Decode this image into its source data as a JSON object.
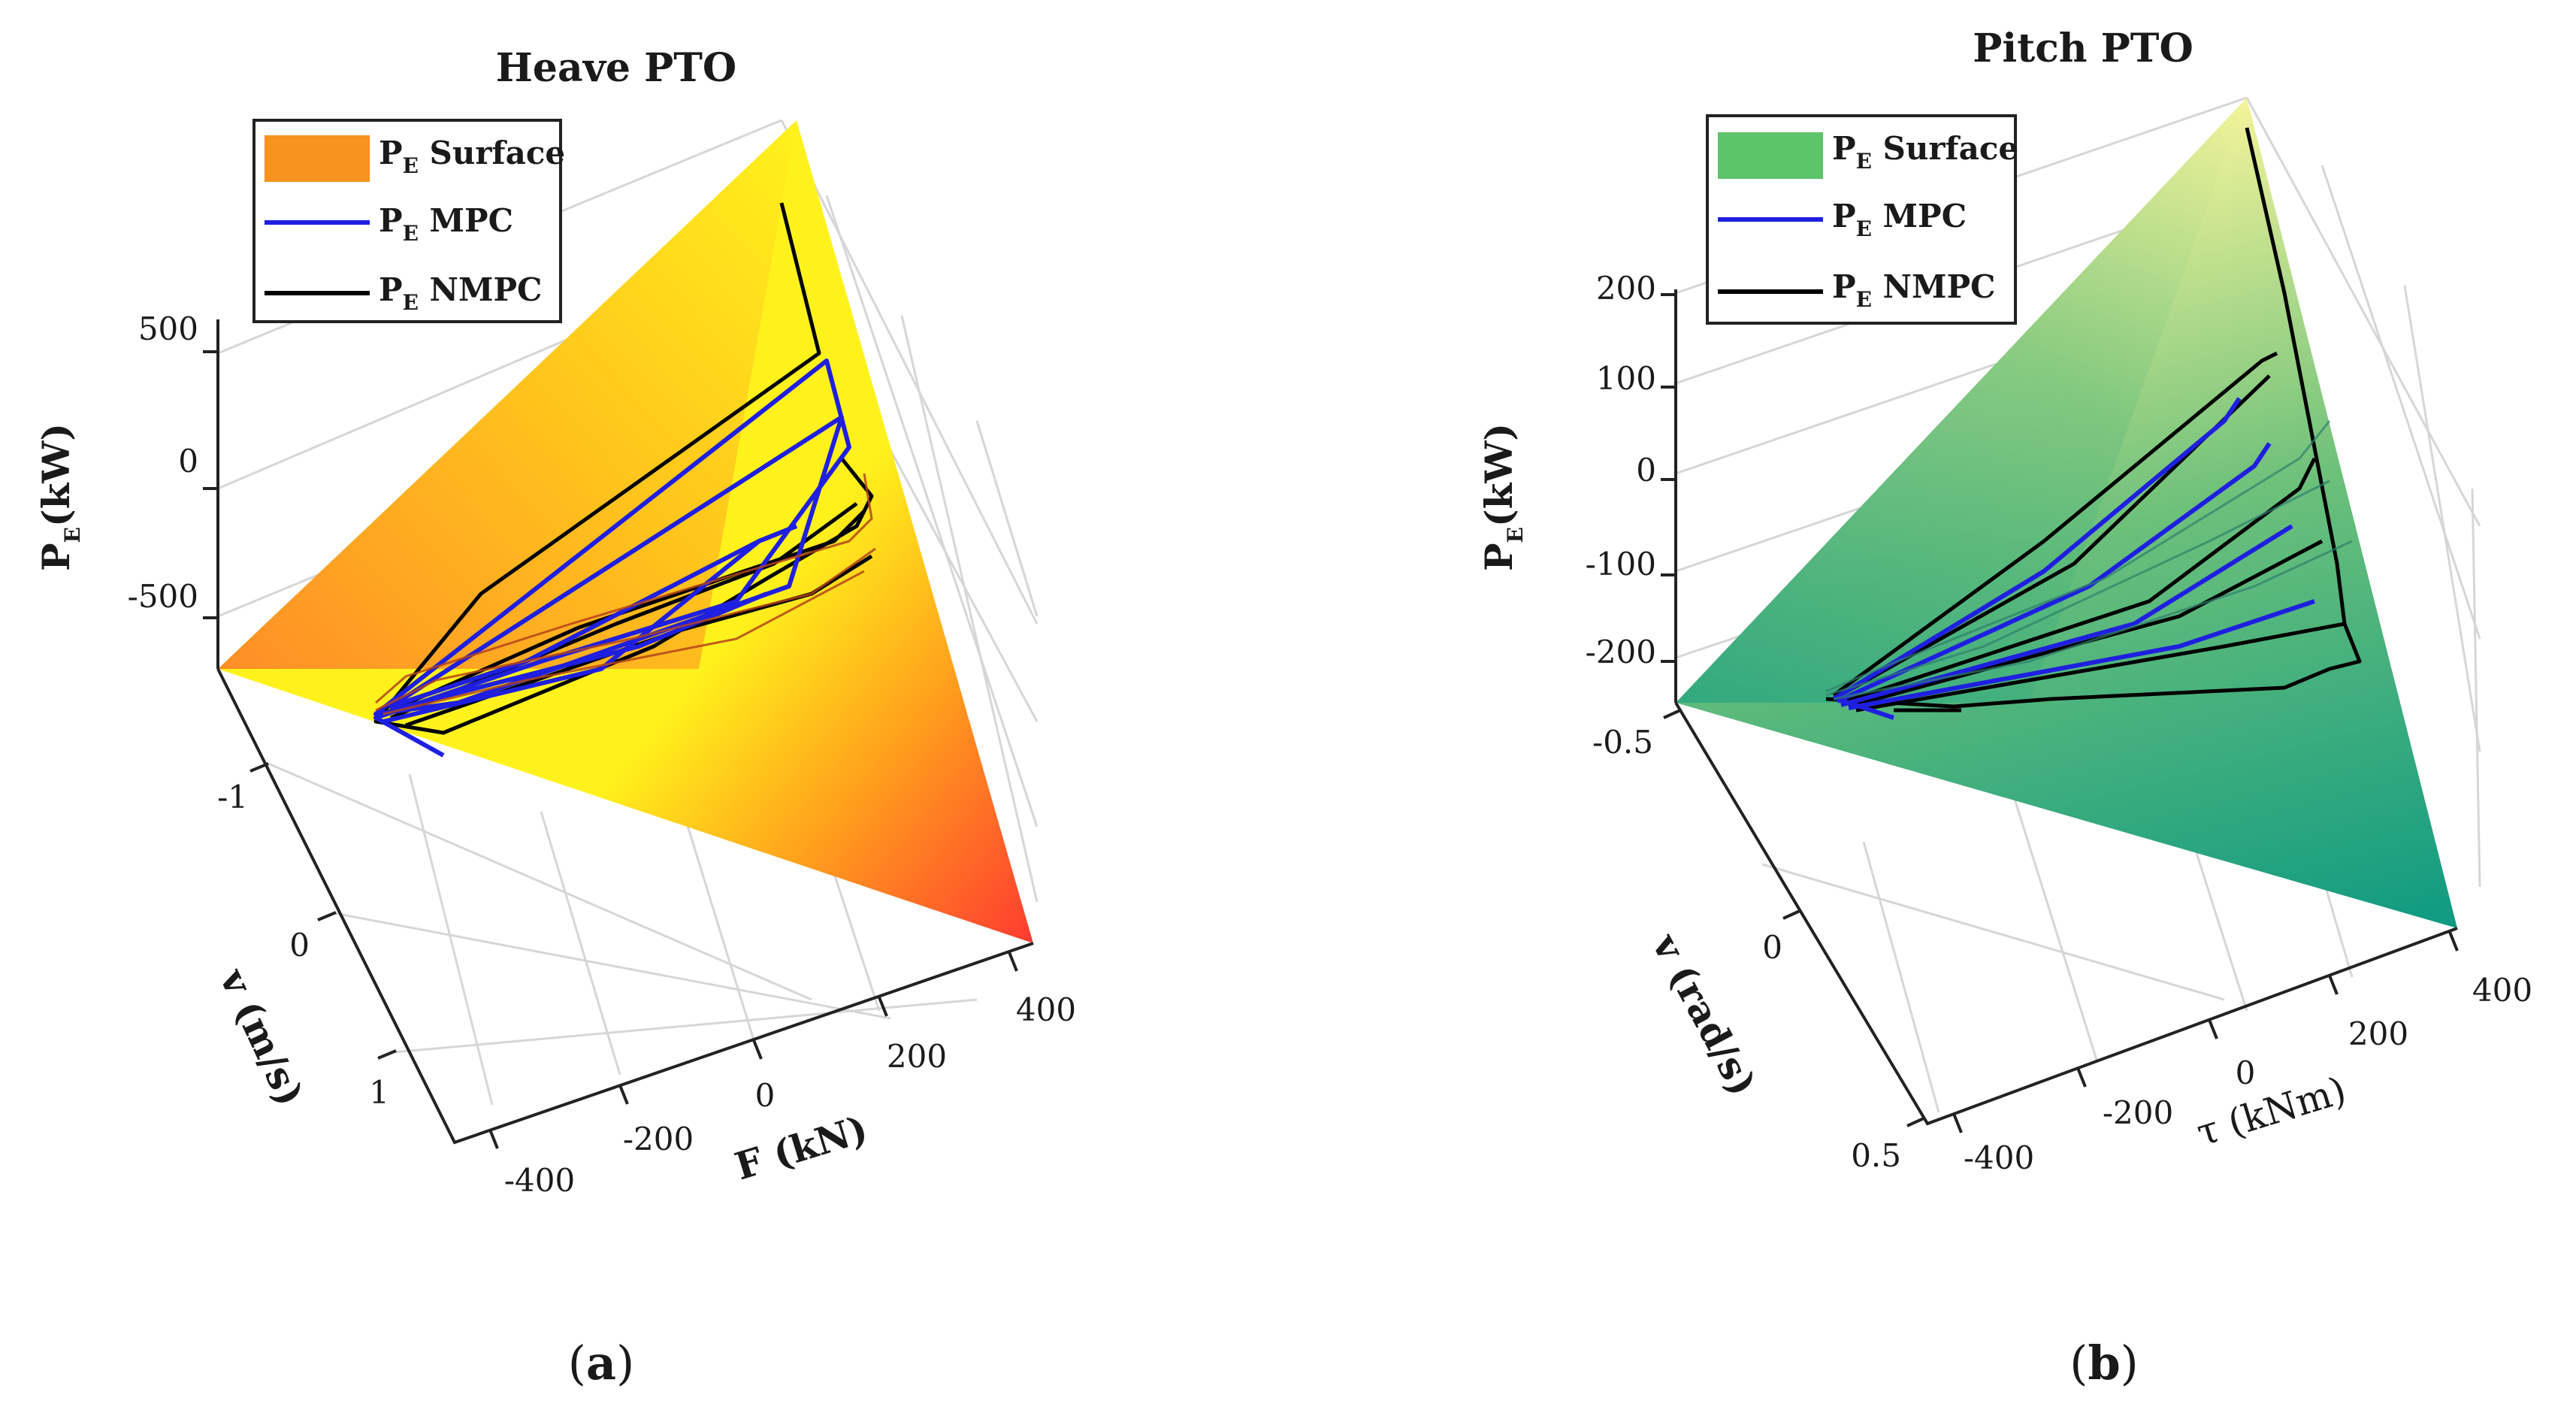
{
  "chart_data": [
    {
      "type": "surface3d",
      "panel_caption": "a",
      "title": "Heave PTO",
      "zlabel": {
        "main": "P",
        "sub": "E",
        "rest": "(kW)"
      },
      "xlabel": "F (kN)",
      "ylabel": "v (m/s)",
      "z_ticks": [
        "500",
        "0",
        "-500"
      ],
      "y_ticks": [
        "-1",
        "0",
        "1"
      ],
      "x_ticks": [
        "-400",
        "-200",
        "0",
        "200",
        "400"
      ],
      "legend": [
        {
          "label_main": "P",
          "label_sub": "E",
          "label_rest": " Surface",
          "kind": "patch",
          "color": "#f7931e"
        },
        {
          "label_main": "P",
          "label_sub": "E",
          "label_rest": " MPC",
          "kind": "line",
          "color": "#1f1fe0"
        },
        {
          "label_main": "P",
          "label_sub": "E",
          "label_rest": " NMPC",
          "kind": "line",
          "color": "#000000"
        }
      ],
      "surface_colors": [
        "#ff3b30",
        "#ffa21c",
        "#fff21c"
      ],
      "series": [
        {
          "name": "P_E MPC",
          "color": "#1f1fe0"
        },
        {
          "name": "P_E NMPC",
          "color": "#000000"
        }
      ]
    },
    {
      "type": "surface3d",
      "panel_caption": "b",
      "title": "Pitch PTO",
      "zlabel": {
        "main": "P",
        "sub": "E",
        "rest": "(kW)"
      },
      "xlabel": "τ (kNm)",
      "ylabel": "v (rad/s)",
      "z_ticks": [
        "200",
        "100",
        "0",
        "-100",
        "-200"
      ],
      "y_ticks": [
        "-0.5",
        "0",
        "0.5"
      ],
      "x_ticks": [
        "-400",
        "-200",
        "0",
        "200",
        "400"
      ],
      "legend": [
        {
          "label_main": "P",
          "label_sub": "E",
          "label_rest": " Surface",
          "kind": "patch",
          "color": "#5cc46a"
        },
        {
          "label_main": "P",
          "label_sub": "E",
          "label_rest": " MPC",
          "kind": "line",
          "color": "#1f1fe0"
        },
        {
          "label_main": "P",
          "label_sub": "E",
          "label_rest": " NMPC",
          "kind": "line",
          "color": "#000000"
        }
      ],
      "surface_colors": [
        "#0e9a82",
        "#6cc07a",
        "#f4f49a"
      ],
      "series": [
        {
          "name": "P_E MPC",
          "color": "#1f1fe0"
        },
        {
          "name": "P_E NMPC",
          "color": "#000000"
        }
      ]
    }
  ]
}
